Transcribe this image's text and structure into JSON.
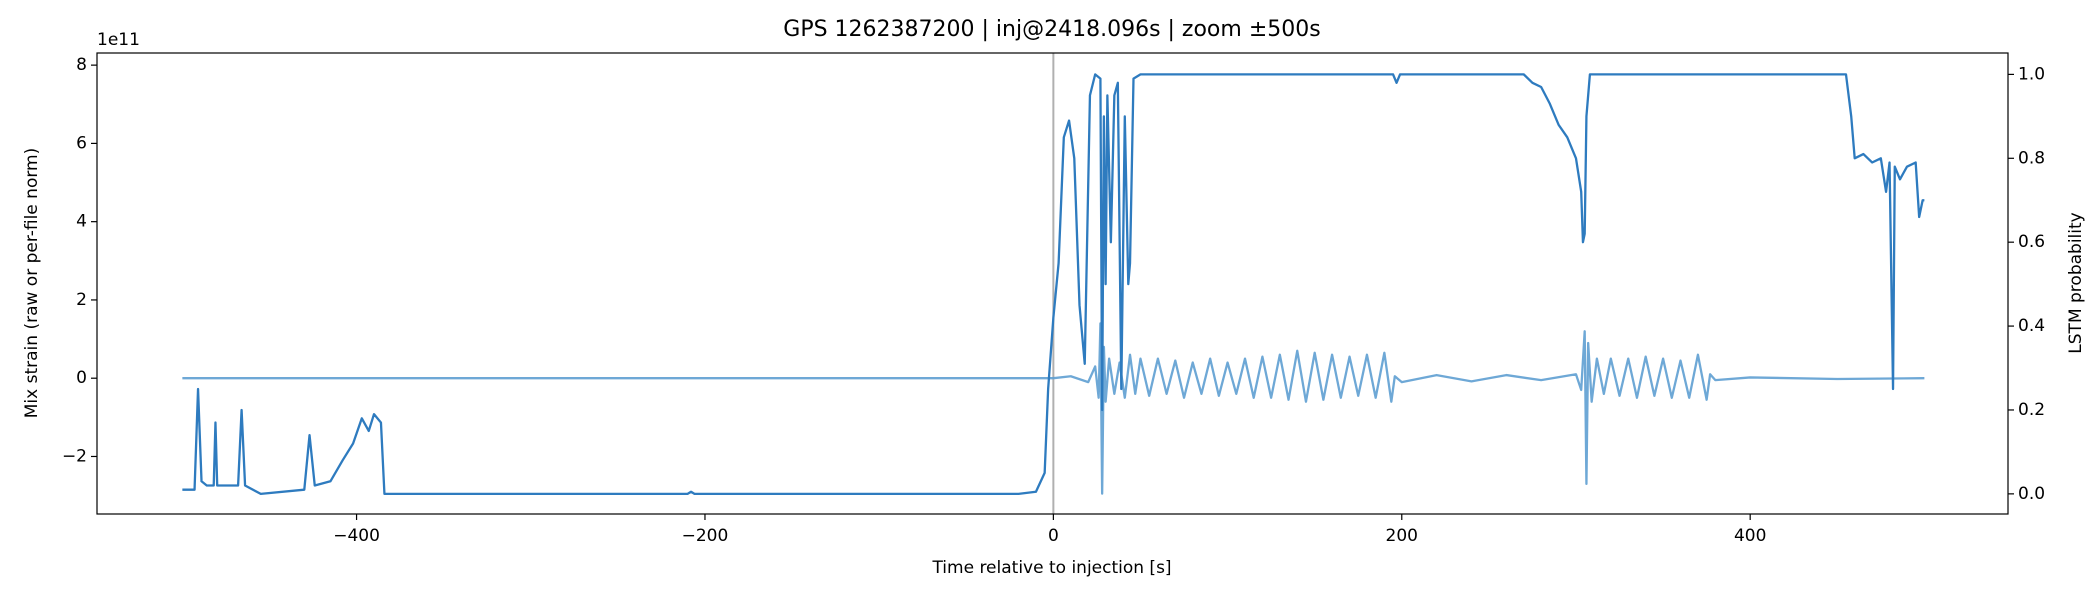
{
  "chart_data": {
    "type": "line",
    "title": "GPS 1262387200 | inj@2418.096s | zoom ±500s",
    "x_label": "Time relative to injection [s]",
    "y_label": "Mix strain (raw or per-file norm)",
    "y2_label": "LSTM probability",
    "y_offset_label": "1e11",
    "injection_marker_x": 0,
    "xlim": [
      -549,
      548
    ],
    "xticks": [
      {
        "value": -400,
        "label": "−400"
      },
      {
        "value": -200,
        "label": "−200"
      },
      0,
      200,
      400
    ],
    "ylim": [
      -3.47,
      8.31
    ],
    "yticks": [
      {
        "value": -2,
        "label": "−2"
      },
      0,
      2,
      4,
      6,
      8
    ],
    "y2lim": [
      -0.048,
      1.051
    ],
    "y2ticks": [
      {
        "value": 0,
        "label": "0.0"
      },
      {
        "value": 0.2,
        "label": "0.2"
      },
      {
        "value": 0.4,
        "label": "0.4"
      },
      {
        "value": 0.6,
        "label": "0.6"
      },
      {
        "value": 0.8,
        "label": "0.8"
      },
      {
        "value": 1,
        "label": "1.0"
      }
    ],
    "series": [
      {
        "color": "#5e9fd2",
        "axis": "y",
        "x": [
          -500,
          -450,
          -400,
          -350,
          -300,
          -250,
          -200,
          -150,
          -100,
          -50,
          -10,
          0,
          10,
          20,
          24,
          26,
          27,
          28,
          29,
          30,
          32,
          35,
          38,
          41,
          44,
          47,
          50,
          55,
          60,
          65,
          70,
          75,
          80,
          85,
          90,
          95,
          100,
          105,
          110,
          115,
          120,
          125,
          130,
          135,
          140,
          145,
          150,
          155,
          160,
          165,
          170,
          175,
          180,
          185,
          190,
          194,
          196,
          200,
          220,
          240,
          260,
          280,
          300,
          303,
          305,
          306,
          307,
          309,
          312,
          316,
          320,
          325,
          330,
          335,
          340,
          345,
          350,
          355,
          360,
          365,
          370,
          375,
          377,
          380,
          400,
          450,
          500
        ],
        "values": [
          0,
          0,
          0,
          0,
          0,
          0,
          0,
          0,
          0,
          0,
          0,
          0,
          0.05,
          -0.1,
          0.3,
          -0.5,
          1.4,
          -2.95,
          0.8,
          -0.6,
          0.5,
          -0.4,
          0.4,
          -0.5,
          0.6,
          -0.4,
          0.5,
          -0.45,
          0.5,
          -0.4,
          0.45,
          -0.5,
          0.4,
          -0.4,
          0.5,
          -0.45,
          0.4,
          -0.4,
          0.5,
          -0.5,
          0.55,
          -0.5,
          0.6,
          -0.55,
          0.7,
          -0.6,
          0.65,
          -0.55,
          0.6,
          -0.5,
          0.55,
          -0.45,
          0.6,
          -0.5,
          0.65,
          -0.6,
          0.05,
          -0.1,
          0.08,
          -0.08,
          0.08,
          -0.05,
          0.1,
          -0.3,
          1.2,
          -2.7,
          0.9,
          -0.6,
          0.5,
          -0.4,
          0.5,
          -0.45,
          0.5,
          -0.5,
          0.55,
          -0.45,
          0.5,
          -0.5,
          0.45,
          -0.5,
          0.6,
          -0.55,
          0.1,
          -0.05,
          0.02,
          -0.02,
          0
        ]
      },
      {
        "color": "#2e7bbf",
        "axis": "y2",
        "x": [
          -500,
          -493,
          -491,
          -489,
          -486,
          -482,
          -481,
          -480,
          -468,
          -466,
          -464,
          -455,
          -430,
          -427,
          -424,
          -415,
          -408,
          -402,
          -397,
          -393,
          -390,
          -386,
          -384,
          -350,
          -210,
          -208,
          -206,
          -20,
          -10,
          -5,
          -3,
          0,
          3,
          6,
          9,
          12,
          15,
          18,
          21,
          24,
          27,
          28,
          29,
          30,
          31,
          33,
          35,
          37,
          39,
          41,
          43,
          44,
          46,
          50,
          195,
          197,
          199,
          270,
          275,
          280,
          285,
          290,
          295,
          300,
          303,
          304,
          305,
          306,
          308,
          455,
          458,
          460,
          465,
          470,
          475,
          478,
          480,
          482,
          483,
          486,
          490,
          495,
          497,
          499,
          500
        ],
        "values": [
          0.01,
          0.01,
          0.25,
          0.03,
          0.02,
          0.02,
          0.17,
          0.02,
          0.02,
          0.2,
          0.02,
          0,
          0.01,
          0.14,
          0.02,
          0.03,
          0.08,
          0.12,
          0.18,
          0.15,
          0.19,
          0.17,
          0,
          0,
          0,
          0.005,
          0,
          0,
          0.005,
          0.05,
          0.25,
          0.42,
          0.55,
          0.85,
          0.89,
          0.8,
          0.45,
          0.31,
          0.95,
          1,
          0.99,
          0.2,
          0.9,
          0.5,
          0.95,
          0.6,
          0.95,
          0.98,
          0.25,
          0.9,
          0.5,
          0.55,
          0.99,
          1,
          1,
          0.98,
          1,
          1,
          0.98,
          0.97,
          0.93,
          0.88,
          0.85,
          0.8,
          0.72,
          0.6,
          0.62,
          0.9,
          1,
          1,
          0.9,
          0.8,
          0.81,
          0.79,
          0.8,
          0.72,
          0.79,
          0.25,
          0.78,
          0.75,
          0.78,
          0.79,
          0.66,
          0.7,
          0.7
        ]
      }
    ]
  }
}
